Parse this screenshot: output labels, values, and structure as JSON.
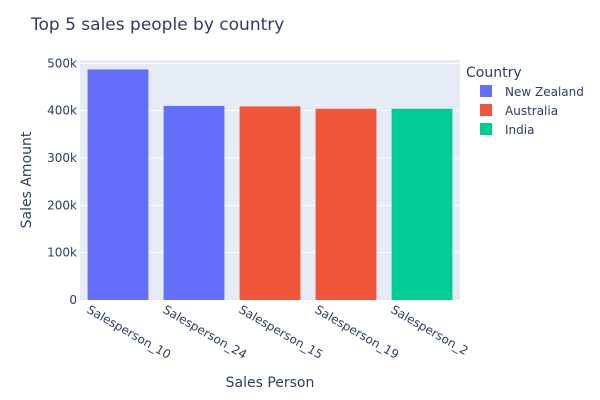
{
  "chart_data": {
    "type": "bar",
    "title": "Top 5 sales people by country",
    "xlabel": "Sales Person",
    "ylabel": "Sales Amount",
    "ylim": [
      0,
      507000
    ],
    "yticks": [
      0,
      100000,
      200000,
      300000,
      400000,
      500000
    ],
    "ytick_labels": [
      "0",
      "100k",
      "200k",
      "300k",
      "400k",
      "500k"
    ],
    "categories": [
      "Salesperson_10",
      "Salesperson_24",
      "Salesperson_15",
      "Salesperson_19",
      "Salesperson_2"
    ],
    "values": [
      487000,
      410000,
      409000,
      404000,
      404000
    ],
    "bar_country": [
      "New Zealand",
      "New Zealand",
      "Australia",
      "Australia",
      "India"
    ],
    "grid": true,
    "legend": {
      "title": "Country",
      "placement": "right",
      "entries": [
        {
          "name": "New Zealand",
          "color": "#636efa"
        },
        {
          "name": "Australia",
          "color": "#ef553b"
        },
        {
          "name": "India",
          "color": "#00cc96"
        }
      ]
    },
    "colors": {
      "plot_background": "#e5ecf6",
      "grid": "#ffffff",
      "text": "#2a3f5f"
    }
  }
}
